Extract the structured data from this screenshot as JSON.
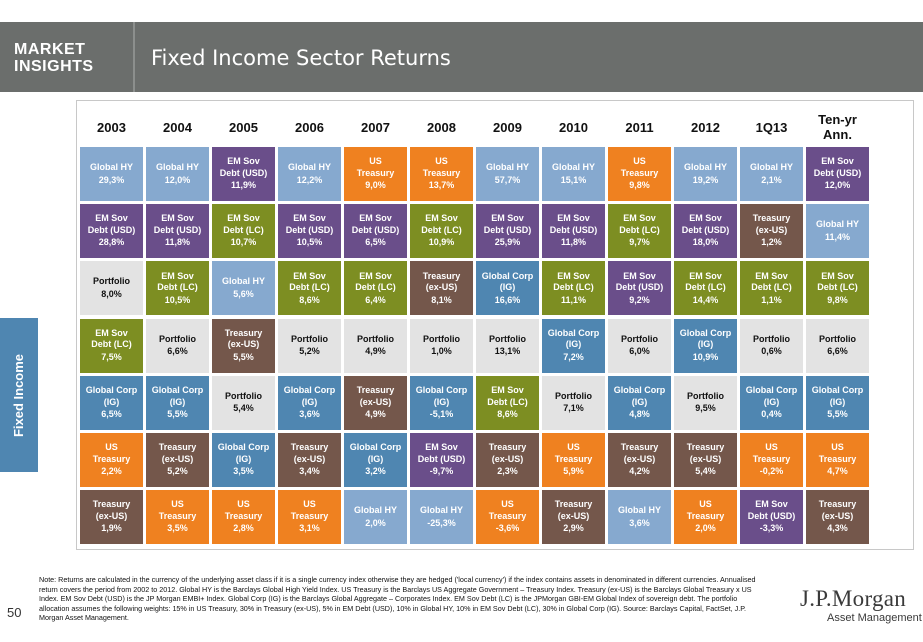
{
  "header": {
    "brand_line1": "MARKET",
    "brand_line2": "INSIGHTS",
    "title": "Fixed Income Sector Returns"
  },
  "side_tab": "Fixed Income",
  "page_number": "50",
  "logo": {
    "main": "J.P.Morgan",
    "sub": "Asset Management"
  },
  "footnote": "Note: Returns are calculated in the currency of the underlying asset class if it is a single currency index otherwise they are hedged ('local currency') if the index contains assets in denominated in different currencies. Annualised return covers the period from 2002 to 2012. Global HY is the Barclays Global High Yield Index. US Treasury is the Barclays US Aggregate Government – Treasury Index. Treasury (ex-US) is the Barclays Global Treasury x US Index. EM Sov Debt (USD) is the JP Morgan EMBI+ Index. Global Corp (IG) is the Barclays Global Aggregate – Corporates Index. EM Sov Debt (LC) is the JPMorgan GBI-EM Global Index of sovereign debt. The portfolio allocation assumes the following weights: 15% in US Treasury, 30% in Treasury (ex-US), 5% in EM Debt (USD), 10% in Global HY, 10% in EM Sov Debt (LC), 30% in Global Corp (IG). Source: Barclays Capital, FactSet, J.P. Morgan Asset Management.",
  "colors": {
    "Global HY": "#86a9cf",
    "EM Sov Debt (USD)": "#6a4e8a",
    "US Treasury": "#ef8120",
    "Treasury (ex-US)": "#74574b",
    "Global Corp (IG)": "#4f86b1",
    "EM Sov Debt (LC)": "#7d8e22",
    "Portfolio": "#e3e3e3"
  },
  "chart_data": {
    "type": "table",
    "columns": [
      "2003",
      "2004",
      "2005",
      "2006",
      "2007",
      "2008",
      "2009",
      "2010",
      "2011",
      "2012",
      "1Q13",
      "Ten-yr Ann."
    ],
    "columns_ranked": [
      [
        {
          "sector": "Global HY",
          "label": "Global HY",
          "value": "29,3%"
        },
        {
          "sector": "EM Sov Debt (USD)",
          "label": "EM Sov Debt (USD)",
          "value": "28,8%"
        },
        {
          "sector": "Portfolio",
          "label": "Portfolio",
          "value": "8,0%"
        },
        {
          "sector": "EM Sov Debt (LC)",
          "label": "EM Sov Debt (LC)",
          "value": "7,5%"
        },
        {
          "sector": "Global Corp (IG)",
          "label": "Global Corp (IG)",
          "value": "6,5%"
        },
        {
          "sector": "US Treasury",
          "label": "US Treasury",
          "value": "2,2%"
        },
        {
          "sector": "Treasury (ex-US)",
          "label": "Treasury (ex-US)",
          "value": "1,9%"
        }
      ],
      [
        {
          "sector": "Global HY",
          "label": "Global HY",
          "value": "12,0%"
        },
        {
          "sector": "EM Sov Debt (USD)",
          "label": "EM Sov Debt (USD)",
          "value": "11,8%"
        },
        {
          "sector": "EM Sov Debt (LC)",
          "label": "EM Sov Debt (LC)",
          "value": "10,5%"
        },
        {
          "sector": "Portfolio",
          "label": "Portfolio",
          "value": "6,6%"
        },
        {
          "sector": "Global Corp (IG)",
          "label": "Global Corp (IG)",
          "value": "5,5%"
        },
        {
          "sector": "Treasury (ex-US)",
          "label": "Treasury (ex-US)",
          "value": "5,2%"
        },
        {
          "sector": "US Treasury",
          "label": "US Treasury",
          "value": "3,5%"
        }
      ],
      [
        {
          "sector": "EM Sov Debt (USD)",
          "label": "EM Sov Debt (USD)",
          "value": "11,9%"
        },
        {
          "sector": "EM Sov Debt (LC)",
          "label": "EM Sov Debt (LC)",
          "value": "10,7%"
        },
        {
          "sector": "Global HY",
          "label": "Global HY",
          "value": "5,6%"
        },
        {
          "sector": "Treasury (ex-US)",
          "label": "Treasury (ex-US)",
          "value": "5,5%"
        },
        {
          "sector": "Portfolio",
          "label": "Portfolio",
          "value": "5,4%"
        },
        {
          "sector": "Global Corp (IG)",
          "label": "Global Corp (IG)",
          "value": "3,5%"
        },
        {
          "sector": "US Treasury",
          "label": "US Treasury",
          "value": "2,8%"
        }
      ],
      [
        {
          "sector": "Global HY",
          "label": "Global HY",
          "value": "12,2%"
        },
        {
          "sector": "EM Sov Debt (USD)",
          "label": "EM Sov Debt (USD)",
          "value": "10,5%"
        },
        {
          "sector": "EM Sov Debt (LC)",
          "label": "EM Sov Debt (LC)",
          "value": "8,6%"
        },
        {
          "sector": "Portfolio",
          "label": "Portfolio",
          "value": "5,2%"
        },
        {
          "sector": "Global Corp (IG)",
          "label": "Global Corp (IG)",
          "value": "3,6%"
        },
        {
          "sector": "Treasury (ex-US)",
          "label": "Treasury (ex-US)",
          "value": "3,4%"
        },
        {
          "sector": "US Treasury",
          "label": "US Treasury",
          "value": "3,1%"
        }
      ],
      [
        {
          "sector": "US Treasury",
          "label": "US Treasury",
          "value": "9,0%"
        },
        {
          "sector": "EM Sov Debt (USD)",
          "label": "EM Sov Debt (USD)",
          "value": "6,5%"
        },
        {
          "sector": "EM Sov Debt (LC)",
          "label": "EM Sov Debt (LC)",
          "value": "6,4%"
        },
        {
          "sector": "Portfolio",
          "label": "Portfolio",
          "value": "4,9%"
        },
        {
          "sector": "Treasury (ex-US)",
          "label": "Treasury (ex-US)",
          "value": "4,9%"
        },
        {
          "sector": "Global Corp (IG)",
          "label": "Global Corp (IG)",
          "value": "3,2%"
        },
        {
          "sector": "Global HY",
          "label": "Global HY",
          "value": "2,0%"
        }
      ],
      [
        {
          "sector": "US Treasury",
          "label": "US Treasury",
          "value": "13,7%"
        },
        {
          "sector": "EM Sov Debt (LC)",
          "label": "EM Sov Debt (LC)",
          "value": "10,9%"
        },
        {
          "sector": "Treasury (ex-US)",
          "label": "Treasury (ex-US)",
          "value": "8,1%"
        },
        {
          "sector": "Portfolio",
          "label": "Portfolio",
          "value": "1,0%"
        },
        {
          "sector": "Global Corp (IG)",
          "label": "Global Corp (IG)",
          "value": "-5,1%"
        },
        {
          "sector": "EM Sov Debt (USD)",
          "label": "EM Sov Debt (USD)",
          "value": "-9,7%"
        },
        {
          "sector": "Global HY",
          "label": "Global HY",
          "value": "-25,3%"
        }
      ],
      [
        {
          "sector": "Global HY",
          "label": "Global HY",
          "value": "57,7%"
        },
        {
          "sector": "EM Sov Debt (USD)",
          "label": "EM Sov Debt (USD)",
          "value": "25,9%"
        },
        {
          "sector": "Global Corp (IG)",
          "label": "Global Corp (IG)",
          "value": "16,6%"
        },
        {
          "sector": "Portfolio",
          "label": "Portfolio",
          "value": "13,1%"
        },
        {
          "sector": "EM Sov Debt (LC)",
          "label": "EM Sov Debt (LC)",
          "value": "8,6%"
        },
        {
          "sector": "Treasury (ex-US)",
          "label": "Treasury (ex-US)",
          "value": "2,3%"
        },
        {
          "sector": "US Treasury",
          "label": "US Treasury",
          "value": "-3,6%"
        }
      ],
      [
        {
          "sector": "Global HY",
          "label": "Global HY",
          "value": "15,1%"
        },
        {
          "sector": "EM Sov Debt (USD)",
          "label": "EM Sov Debt (USD)",
          "value": "11,8%"
        },
        {
          "sector": "EM Sov Debt (LC)",
          "label": "EM Sov Debt (LC)",
          "value": "11,1%"
        },
        {
          "sector": "Global Corp (IG)",
          "label": "Global Corp (IG)",
          "value": "7,2%"
        },
        {
          "sector": "Portfolio",
          "label": "Portfolio",
          "value": "7,1%"
        },
        {
          "sector": "US Treasury",
          "label": "US Treasury",
          "value": "5,9%"
        },
        {
          "sector": "Treasury (ex-US)",
          "label": "Treasury (ex-US)",
          "value": "2,9%"
        }
      ],
      [
        {
          "sector": "US Treasury",
          "label": "US Treasury",
          "value": "9,8%"
        },
        {
          "sector": "EM Sov Debt (LC)",
          "label": "EM Sov Debt (LC)",
          "value": "9,7%"
        },
        {
          "sector": "EM Sov Debt (USD)",
          "label": "EM Sov Debt (USD)",
          "value": "9,2%"
        },
        {
          "sector": "Portfolio",
          "label": "Portfolio",
          "value": "6,0%"
        },
        {
          "sector": "Global Corp (IG)",
          "label": "Global Corp (IG)",
          "value": "4,8%"
        },
        {
          "sector": "Treasury (ex-US)",
          "label": "Treasury (ex-US)",
          "value": "4,2%"
        },
        {
          "sector": "Global HY",
          "label": "Global HY",
          "value": "3,6%"
        }
      ],
      [
        {
          "sector": "Global HY",
          "label": "Global HY",
          "value": "19,2%"
        },
        {
          "sector": "EM Sov Debt (USD)",
          "label": "EM Sov Debt (USD)",
          "value": "18,0%"
        },
        {
          "sector": "EM Sov Debt (LC)",
          "label": "EM Sov Debt (LC)",
          "value": "14,4%"
        },
        {
          "sector": "Global Corp (IG)",
          "label": "Global Corp (IG)",
          "value": "10,9%"
        },
        {
          "sector": "Portfolio",
          "label": "Portfolio",
          "value": "9,5%"
        },
        {
          "sector": "Treasury (ex-US)",
          "label": "Treasury (ex-US)",
          "value": "5,4%"
        },
        {
          "sector": "US Treasury",
          "label": "US Treasury",
          "value": "2,0%"
        }
      ],
      [
        {
          "sector": "Global HY",
          "label": "Global HY",
          "value": "2,1%"
        },
        {
          "sector": "Treasury (ex-US)",
          "label": "Treasury (ex-US)",
          "value": "1,2%"
        },
        {
          "sector": "EM Sov Debt (LC)",
          "label": "EM Sov Debt (LC)",
          "value": "1,1%"
        },
        {
          "sector": "Portfolio",
          "label": "Portfolio",
          "value": "0,6%"
        },
        {
          "sector": "Global Corp (IG)",
          "label": "Global Corp (IG)",
          "value": "0,4%"
        },
        {
          "sector": "US Treasury",
          "label": "US Treasury",
          "value": "-0,2%"
        },
        {
          "sector": "EM Sov Debt (USD)",
          "label": "EM Sov Debt (USD)",
          "value": "-3,3%"
        }
      ],
      [
        {
          "sector": "EM Sov Debt (USD)",
          "label": "EM Sov Debt (USD)",
          "value": "12,0%"
        },
        {
          "sector": "Global HY",
          "label": "Global HY",
          "value": "11,4%"
        },
        {
          "sector": "EM Sov Debt (LC)",
          "label": "EM Sov Debt (LC)",
          "value": "9,8%"
        },
        {
          "sector": "Portfolio",
          "label": "Portfolio",
          "value": "6,6%"
        },
        {
          "sector": "Global Corp (IG)",
          "label": "Global Corp (IG)",
          "value": "5,5%"
        },
        {
          "sector": "US Treasury",
          "label": "US Treasury",
          "value": "4,7%"
        },
        {
          "sector": "Treasury (ex-US)",
          "label": "Treasury (ex-US)",
          "value": "4,3%"
        }
      ]
    ]
  }
}
